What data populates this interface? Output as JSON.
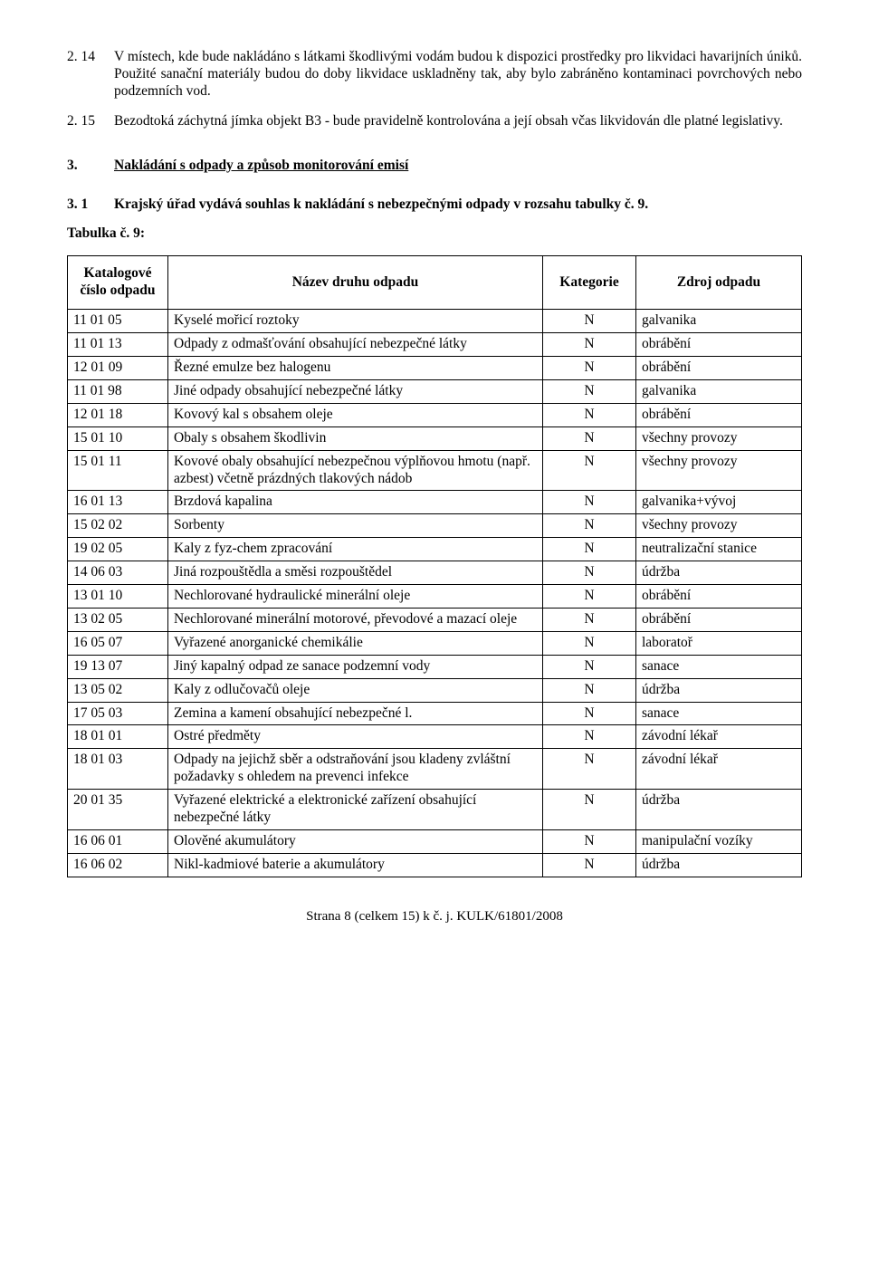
{
  "paras": [
    {
      "num": "2. 14",
      "text": "V místech, kde bude nakládáno s látkami škodlivými vodám budou k dispozici prostředky pro likvidaci havarijních úniků. Použité sanační materiály budou do doby likvidace uskladněny tak, aby bylo zabráněno kontaminaci povrchových nebo podzemních vod."
    },
    {
      "num": "2. 15",
      "text": "Bezodtoká záchytná jímka objekt B3 - bude pravidelně kontrolována a její obsah včas likvidován dle platné legislativy."
    }
  ],
  "section": {
    "num": "3.",
    "title": "Nakládání s odpady a způsob monitorování emisí"
  },
  "sub": {
    "num": "3. 1",
    "text": "Krajský úřad vydává souhlas k nakládání s nebezpečnými odpady v rozsahu tabulky č. 9."
  },
  "tableLabel": "Tabulka č. 9:",
  "headers": {
    "code": "Katalogové číslo odpadu",
    "name": "Název druhu odpadu",
    "cat": "Kategorie",
    "src": "Zdroj odpadu"
  },
  "rows": [
    {
      "code": "11 01 05",
      "name": "Kyselé mořicí roztoky",
      "cat": "N",
      "src": "galvanika"
    },
    {
      "code": "11 01 13",
      "name": "Odpady z odmašťování obsahující nebezpečné látky",
      "cat": "N",
      "src": "obrábění"
    },
    {
      "code": "12 01 09",
      "name": "Řezné emulze bez halogenu",
      "cat": "N",
      "src": "obrábění"
    },
    {
      "code": "11 01 98",
      "name": "Jiné odpady obsahující nebezpečné látky",
      "cat": "N",
      "src": "galvanika"
    },
    {
      "code": "12 01 18",
      "name": "Kovový kal s obsahem oleje",
      "cat": "N",
      "src": "obrábění"
    },
    {
      "code": "15 01 10",
      "name": "Obaly s obsahem škodlivin",
      "cat": "N",
      "src": "všechny provozy"
    },
    {
      "code": "15 01 11",
      "name": "Kovové obaly obsahující nebezpečnou výplňovou hmotu (např. azbest) včetně prázdných tlakových nádob",
      "cat": "N",
      "src": "všechny provozy"
    },
    {
      "code": "16 01 13",
      "name": "Brzdová kapalina",
      "cat": "N",
      "src": "galvanika+vývoj"
    },
    {
      "code": "15 02 02",
      "name": "Sorbenty",
      "cat": "N",
      "src": "všechny provozy"
    },
    {
      "code": "19 02 05",
      "name": "Kaly z fyz-chem zpracování",
      "cat": "N",
      "src": "neutralizační stanice"
    },
    {
      "code": "14 06 03",
      "name": "Jiná rozpouštědla a směsi rozpouštědel",
      "cat": "N",
      "src": "údržba"
    },
    {
      "code": "13 01 10",
      "name": "Nechlorované hydraulické minerální oleje",
      "cat": "N",
      "src": "obrábění"
    },
    {
      "code": "13 02 05",
      "name": "Nechlorované minerální motorové, převodové a mazací oleje",
      "cat": "N",
      "src": "obrábění"
    },
    {
      "code": "16 05 07",
      "name": "Vyřazené anorganické chemikálie",
      "cat": "N",
      "src": "laboratoř"
    },
    {
      "code": "19 13 07",
      "name": "Jiný kapalný odpad ze sanace podzemní vody",
      "cat": "N",
      "src": "sanace"
    },
    {
      "code": "13 05 02",
      "name": "Kaly z odlučovačů oleje",
      "cat": "N",
      "src": "údržba"
    },
    {
      "code": "17 05 03",
      "name": "Zemina a kamení obsahující nebezpečné l.",
      "cat": "N",
      "src": "sanace"
    },
    {
      "code": "18 01 01",
      "name": "Ostré předměty",
      "cat": "N",
      "src": "závodní lékař"
    },
    {
      "code": "18 01 03",
      "name": "Odpady na jejichž sběr a odstraňování jsou kladeny zvláštní požadavky s ohledem na prevenci infekce",
      "cat": "N",
      "src": "závodní lékař"
    },
    {
      "code": "20 01 35",
      "name": "Vyřazené elektrické a elektronické zařízení obsahující nebezpečné látky",
      "cat": "N",
      "src": "údržba"
    },
    {
      "code": "16 06 01",
      "name": "Olověné akumulátory",
      "cat": "N",
      "src": "manipulační vozíky"
    },
    {
      "code": "16 06 02",
      "name": "Nikl-kadmiové baterie a akumulátory",
      "cat": "N",
      "src": "údržba"
    }
  ],
  "footer": "Strana 8 (celkem 15) k č. j. KULK/61801/2008"
}
